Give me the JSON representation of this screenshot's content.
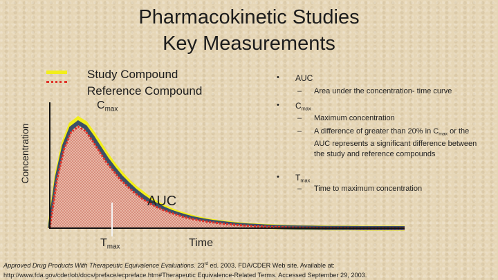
{
  "slide": {
    "title_line1": "Pharmacokinetic Studies",
    "title_line2": "Key Measurements",
    "colors": {
      "study": "#f2ee1a",
      "reference": "#e0342a",
      "dark_curve": "#3b5068",
      "fill": "#e8a59a"
    }
  },
  "legend": {
    "study_label": "Study Compound",
    "reference_label": "Reference Compound"
  },
  "chart": {
    "ylabel": "Concentration",
    "xlabel": "Time",
    "cmax_main": "C",
    "cmax_sub": "max",
    "tmax_main": "T",
    "tmax_sub": "max",
    "auc_label": "AUC"
  },
  "chart_data": {
    "type": "area",
    "xlabel": "Time",
    "ylabel": "Concentration",
    "x": [
      0,
      0.5,
      1,
      1.5,
      2,
      2.5,
      3,
      3.5,
      4,
      4.5,
      5,
      5.5,
      6,
      6.5,
      7,
      7.5,
      8,
      8.5,
      9,
      9.5,
      10,
      10.5,
      11,
      11.5,
      12,
      12.5,
      13,
      13.5,
      14,
      14.5,
      15,
      15.5,
      16,
      16.5,
      17,
      17.5,
      18,
      18.5,
      19,
      19.5,
      20,
      20.5,
      21,
      21.5,
      22,
      22.5,
      23,
      23.5,
      24,
      24.5,
      25
    ],
    "series": [
      {
        "name": "Study Compound",
        "values": [
          0,
          48,
          78,
          95,
          100,
          96,
          87,
          77,
          67,
          58,
          50,
          43,
          37,
          32,
          27,
          23,
          19.5,
          16.5,
          14,
          12,
          10,
          8.5,
          7.2,
          6.1,
          5.2,
          4.4,
          3.7,
          3.1,
          2.6,
          2.2,
          1.8,
          1.5,
          1.2,
          1,
          0.8,
          0.6,
          0.5,
          0.4,
          0.3,
          0.2,
          0.2,
          0.1,
          0.1,
          0.1,
          0,
          0,
          0,
          0,
          0,
          0,
          0
        ]
      },
      {
        "name": "Reference Compound",
        "values": [
          0,
          44,
          72,
          88,
          93,
          89,
          80,
          70,
          60,
          52,
          44,
          38,
          32,
          27,
          23,
          19.5,
          16.5,
          14,
          12,
          10,
          8.5,
          7.2,
          6.1,
          5.2,
          4.4,
          3.7,
          3.1,
          2.6,
          2.2,
          1.8,
          1.5,
          1.2,
          1,
          0.8,
          0.6,
          0.5,
          0.4,
          0.3,
          0.2,
          0.2,
          0.1,
          0.1,
          0.1,
          0,
          0,
          0,
          0,
          0,
          0,
          0,
          0
        ]
      }
    ],
    "annotations": [
      "Cmax",
      "Tmax",
      "AUC"
    ],
    "grid": false,
    "legend": "top-left"
  },
  "bullets": {
    "auc": {
      "dot": "•",
      "term": "AUC",
      "subs": [
        {
          "dash": "–",
          "text": "Area under the concentration- time curve"
        }
      ]
    },
    "cmax": {
      "dot": "•",
      "term_main": "C",
      "term_sub": "max",
      "sub1": {
        "dash": "–",
        "text": "Maximum concentration"
      },
      "sub2": {
        "dash": "–",
        "text_a": "A difference of greater than 20% in C",
        "text_sub": "max",
        "text_b": " or the AUC represents a significant difference between the study and reference compounds"
      }
    },
    "tmax": {
      "dot": "•",
      "term_main": "T",
      "term_sub": "max",
      "subs": [
        {
          "dash": "–",
          "text": "Time to maximum concentration"
        }
      ]
    }
  },
  "citation": {
    "italic": "Approved Drug Products With Therapeutic Equivalence Evaluations.",
    "edition_pre": " 23",
    "edition_sup": "rd",
    "rest_line1": " ed. 2003. FDA/CDER Web site. Available at:",
    "line2": "http://www.fda.gov/cder/ob/docs/preface/ecpreface.htm#Therapeutic Equivalence-Related Terms. Accessed September 29, 2003."
  }
}
